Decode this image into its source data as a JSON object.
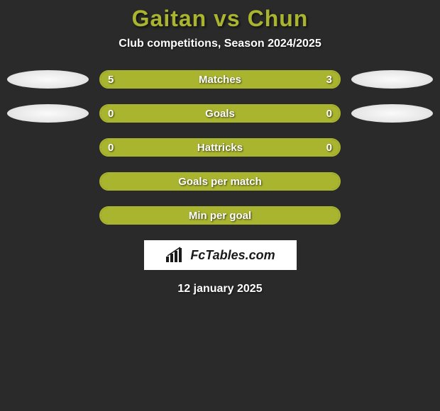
{
  "title": "Gaitan vs Chun",
  "subtitle": "Club competitions, Season 2024/2025",
  "footer_brand": "FcTables.com",
  "footer_date": "12 january 2025",
  "colors": {
    "background": "#2a2a2a",
    "accent": "#aab52f",
    "badge": "#f0f0f0",
    "text": "#ffffff"
  },
  "rows": [
    {
      "label": "Matches",
      "left_val": "5",
      "right_val": "3",
      "show_left_badge": true,
      "show_right_badge": true,
      "fill_left_pct": 62.5,
      "fill_right_pct": 37.5
    },
    {
      "label": "Goals",
      "left_val": "0",
      "right_val": "0",
      "show_left_badge": true,
      "show_right_badge": true,
      "fill_left_pct": 100,
      "fill_right_pct": 0
    },
    {
      "label": "Hattricks",
      "left_val": "0",
      "right_val": "0",
      "show_left_badge": false,
      "show_right_badge": false,
      "fill_left_pct": 100,
      "fill_right_pct": 0
    },
    {
      "label": "Goals per match",
      "left_val": "",
      "right_val": "",
      "show_left_badge": false,
      "show_right_badge": false,
      "fill_left_pct": 100,
      "fill_right_pct": 0
    },
    {
      "label": "Min per goal",
      "left_val": "",
      "right_val": "",
      "show_left_badge": false,
      "show_right_badge": false,
      "fill_left_pct": 100,
      "fill_right_pct": 0
    }
  ]
}
